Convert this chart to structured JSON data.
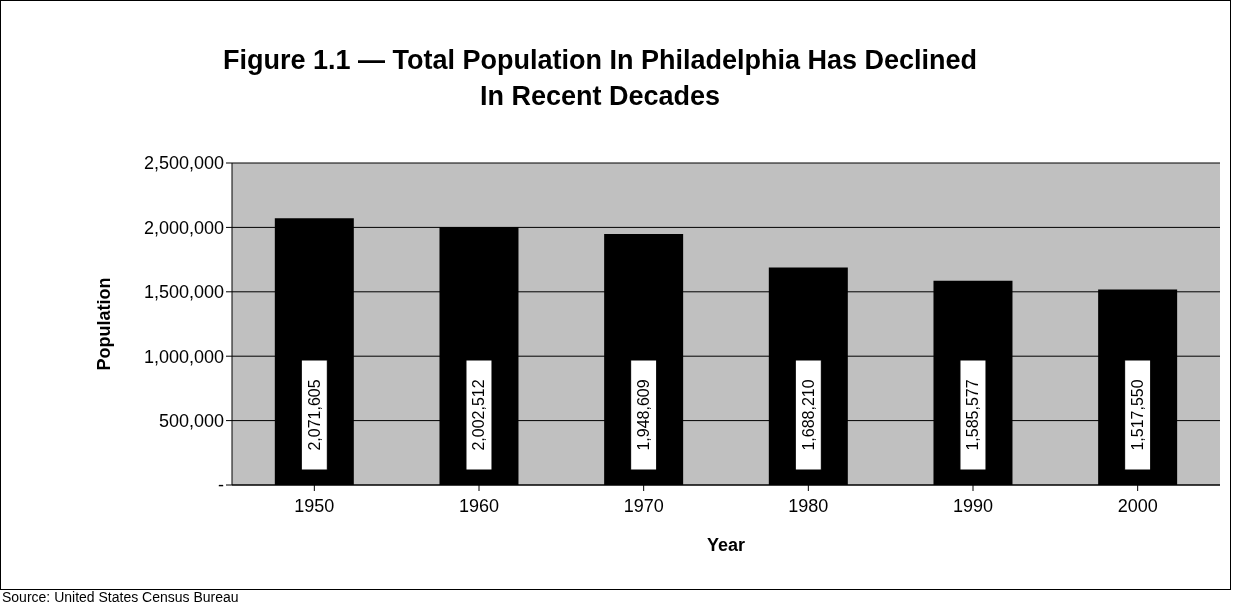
{
  "chart_data": {
    "type": "bar",
    "title": "Figure 1.1 — Total Population In Philadelphia Has Declined In Recent Decades",
    "xlabel": "Year",
    "ylabel": "Population",
    "categories": [
      "1950",
      "1960",
      "1970",
      "1980",
      "1990",
      "2000"
    ],
    "values": [
      2071605,
      2002512,
      1948609,
      1688210,
      1585577,
      1517550
    ],
    "value_labels": [
      "2,071,605",
      "2,002,512",
      "1,948,609",
      "1,688,210",
      "1,585,577",
      "1,517,550"
    ],
    "color": "#000000",
    "ylim": [
      0,
      2500000
    ],
    "yticks": [
      {
        "value": 0,
        "label": "-"
      },
      {
        "value": 500000,
        "label": "500,000"
      },
      {
        "value": 1000000,
        "label": "1,000,000"
      },
      {
        "value": 1500000,
        "label": "1,500,000"
      },
      {
        "value": 2000000,
        "label": "2,000,000"
      },
      {
        "value": 2500000,
        "label": "2,500,000"
      }
    ],
    "grid": "y",
    "annotations": [
      "Source:  United States Census Bureau"
    ]
  }
}
